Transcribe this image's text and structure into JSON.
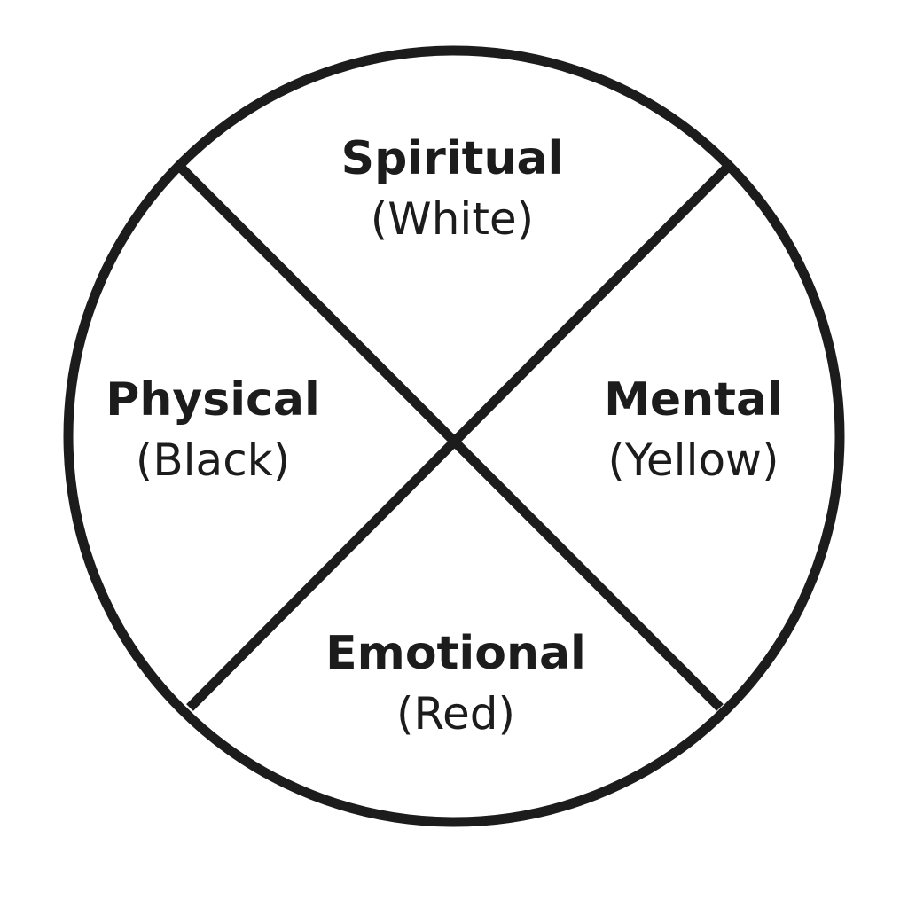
{
  "wheel": {
    "quadrants": [
      {
        "position": "top",
        "name": "Spiritual",
        "color_label": "(White)"
      },
      {
        "position": "left",
        "name": "Physical",
        "color_label": "(Black)"
      },
      {
        "position": "right",
        "name": "Mental",
        "color_label": "(Yellow)"
      },
      {
        "position": "bottom",
        "name": "Emotional",
        "color_label": "(Red)"
      }
    ],
    "stroke_color": "#1c1c1c",
    "fill_color": "#ffffff"
  }
}
